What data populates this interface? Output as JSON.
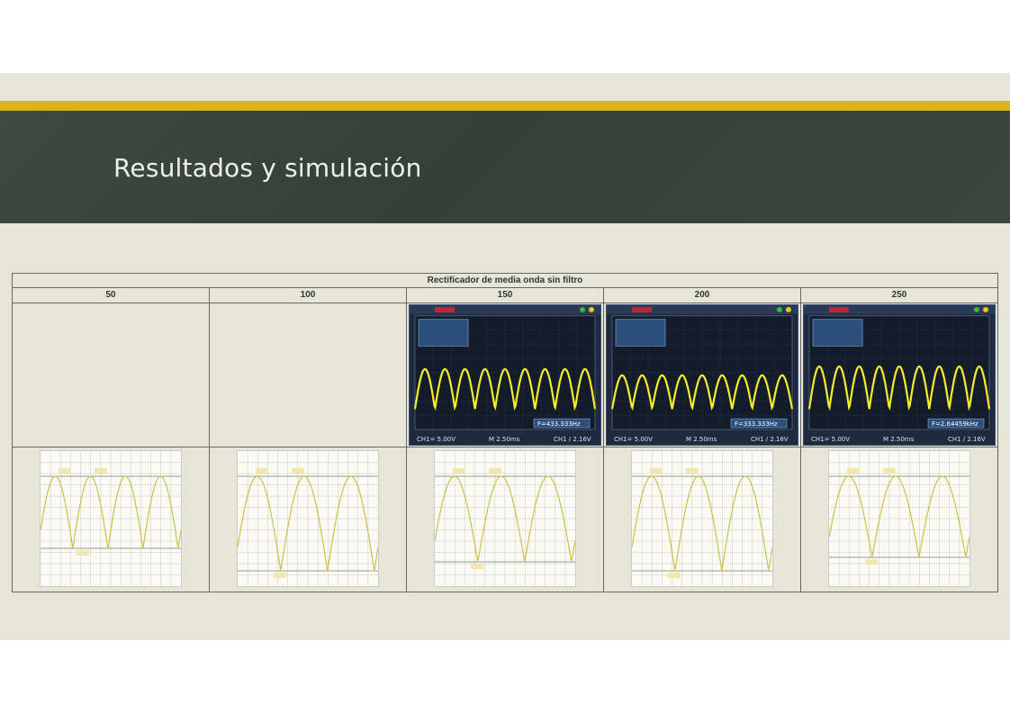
{
  "slide": {
    "title": "Resultados y simulación"
  },
  "table": {
    "title": "Rectificador de media onda sin filtro",
    "columns": [
      "50",
      "100",
      "150",
      "200",
      "250"
    ]
  },
  "scopes": [
    {
      "column": "150",
      "footer": [
        "CH1= 5.00V",
        "M 2.50ms",
        "CH1 / 2.16V"
      ],
      "readout": "F=433.333Hz"
    },
    {
      "column": "200",
      "footer": [
        "CH1= 5.00V",
        "M 2.50ms",
        "CH1 / 2.16V"
      ],
      "readout": "F=333.333Hz"
    },
    {
      "column": "250",
      "footer": [
        "CH1= 5.00V",
        "M 2.50ms",
        "CH1 / 2.16V"
      ],
      "readout": "F=2.64459kHz"
    }
  ],
  "colors": {
    "title_band": "#3a473f",
    "gold_accent": "#d8b31e",
    "slide_bg": "#e6e6d8",
    "scope_trace": "#f2ee2a",
    "sim_trace": "#c9c24a"
  }
}
